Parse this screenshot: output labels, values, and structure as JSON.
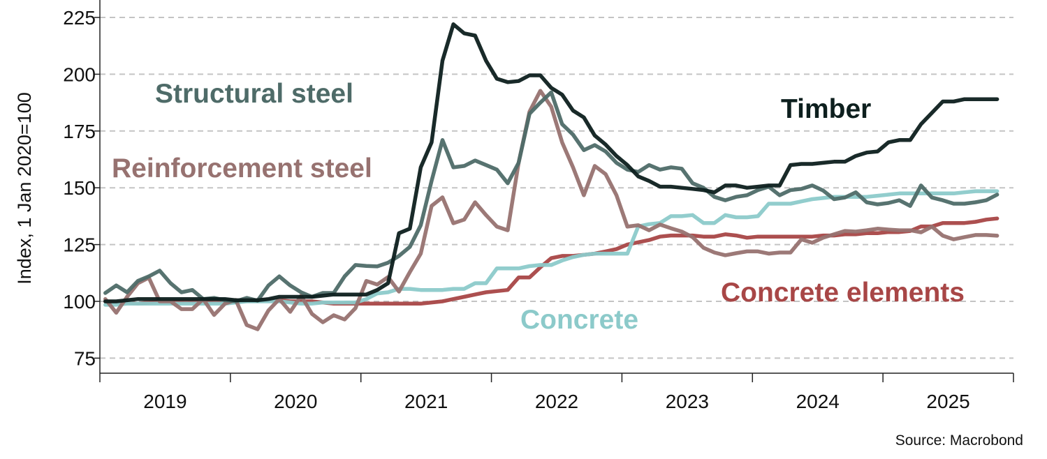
{
  "source": "Source: Macrobond",
  "chart_data": {
    "type": "line",
    "title": "",
    "xlabel": "",
    "ylabel": "Index, 1 Jan 2020=100",
    "ylim": [
      68,
      233
    ],
    "yticks": [
      75,
      100,
      125,
      150,
      175,
      200,
      225
    ],
    "xticks": [
      "2019",
      "2020",
      "2021",
      "2022",
      "2023",
      "2024",
      "2025"
    ],
    "xlim": [
      "2019-01-01",
      "2026-01-01"
    ],
    "x_start": "2019-01",
    "x_frequency": "monthly",
    "grid": "horizontal dashed",
    "legend": "inline labels",
    "series": [
      {
        "name": "Concrete elements",
        "color": "#a84646",
        "values": [
          100,
          99.5,
          99.5,
          99,
          99.5,
          100,
          100,
          100,
          100,
          100,
          100,
          100,
          100,
          100.5,
          100.5,
          100.5,
          100.5,
          100,
          100,
          100,
          99.5,
          99,
          99,
          99,
          99,
          99,
          99,
          99,
          99,
          99,
          99.5,
          100,
          101,
          102,
          103,
          104,
          104.5,
          105,
          110.5,
          110.5,
          115,
          119,
          120,
          120,
          120.5,
          121,
          122,
          123,
          125,
          126,
          127,
          128.5,
          129,
          129,
          129,
          128.5,
          128.5,
          129.5,
          129,
          128,
          128.5,
          128.5,
          128.5,
          128.5,
          128.5,
          128.5,
          129,
          129,
          129.5,
          129.5,
          130,
          130,
          130.5,
          130.5,
          131,
          133,
          133,
          134.5,
          134.5,
          134.5,
          135,
          136,
          136.5
        ]
      },
      {
        "name": "Concrete",
        "color": "#8ccaca",
        "values": [
          98.5,
          98.5,
          99,
          99,
          99,
          99,
          99,
          99,
          99,
          99,
          99,
          99,
          99.5,
          100,
          100,
          100,
          100,
          99.5,
          99,
          99,
          99.5,
          99.5,
          99.5,
          99.5,
          101,
          103.5,
          104,
          105.5,
          105.5,
          105,
          105,
          105,
          105.5,
          105.5,
          108,
          108,
          114.5,
          114.5,
          114.5,
          115.5,
          116,
          116,
          118,
          119.5,
          120.5,
          121,
          121,
          121,
          121,
          133,
          134,
          134.5,
          137.5,
          137.5,
          138,
          134.5,
          134.5,
          138,
          137,
          137,
          137.5,
          143,
          143,
          143,
          144,
          145,
          145.5,
          146,
          146,
          146,
          146,
          146.5,
          147,
          147.5,
          147.5,
          147.5,
          147.5,
          147.5,
          147.5,
          148,
          148.5,
          148.5,
          148.5
        ]
      },
      {
        "name": "Reinforcement steel",
        "color": "#977270",
        "values": [
          101,
          95,
          102,
          108,
          110.4,
          100,
          100,
          96.6,
          96.6,
          101,
          94,
          99,
          100.6,
          89.6,
          87.7,
          96,
          101,
          95.4,
          102.5,
          94.5,
          90.8,
          93.9,
          92,
          97,
          109,
          107.4,
          110.7,
          104.3,
          112.9,
          121,
          142,
          145.8,
          134.4,
          136,
          143.6,
          138,
          132.9,
          131.3,
          161,
          183.5,
          192.7,
          185.7,
          170,
          159,
          146.7,
          159.6,
          156,
          146.7,
          132.9,
          133.5,
          131.3,
          133.8,
          132.2,
          130.7,
          128.3,
          123.6,
          121.5,
          120.3,
          121.2,
          122,
          122,
          121,
          121.5,
          121.5,
          127.3,
          125.8,
          128,
          129.5,
          131,
          130.7,
          131.3,
          132,
          131.6,
          131.3,
          131.3,
          130.4,
          132.9,
          128.9,
          127.3,
          128.3,
          129.2,
          129.2,
          128.9
        ]
      },
      {
        "name": "Structural steel",
        "color": "#4e6b68",
        "values": [
          103.7,
          107,
          104,
          109,
          111,
          113.5,
          108,
          104,
          105,
          101,
          101.5,
          100.5,
          100,
          101.5,
          100.3,
          107,
          111,
          107,
          104,
          102,
          103.7,
          103.7,
          111,
          116,
          115.6,
          115.4,
          117,
          120,
          124,
          133.5,
          153,
          171,
          159,
          159.6,
          162,
          160,
          158,
          152,
          161,
          182.6,
          187.5,
          192,
          178,
          173.4,
          166.6,
          168.8,
          166,
          161,
          158,
          157,
          160,
          158,
          159,
          158.4,
          152,
          150,
          146,
          144.5,
          146,
          146.7,
          149,
          150.5,
          146.7,
          149,
          149.5,
          151,
          148.8,
          145,
          145.7,
          148,
          143.6,
          142.7,
          143.3,
          144.5,
          142,
          151,
          145.7,
          144.5,
          143,
          143,
          143.6,
          144.5,
          147
        ]
      },
      {
        "name": "Timber",
        "color": "#0d1f1e",
        "values": [
          100,
          100,
          100.5,
          101,
          101,
          101,
          101,
          101,
          101,
          101,
          101,
          101,
          100.5,
          100.5,
          100.5,
          101,
          102,
          102,
          102,
          102,
          102.5,
          103,
          103,
          103,
          103,
          105,
          108,
          130,
          132,
          159,
          170,
          206,
          222,
          218,
          217,
          206,
          198,
          196.5,
          197,
          199.5,
          199.5,
          194,
          191,
          184,
          181,
          173,
          169,
          164,
          160,
          155,
          153,
          150.5,
          150.5,
          150,
          149.5,
          149,
          148,
          151,
          151,
          150,
          150.5,
          151,
          151,
          160,
          160.5,
          160.5,
          161,
          161.5,
          161.5,
          164,
          165.5,
          166,
          170,
          171,
          171,
          178,
          183,
          188,
          188,
          189,
          189,
          189,
          189
        ]
      }
    ]
  }
}
